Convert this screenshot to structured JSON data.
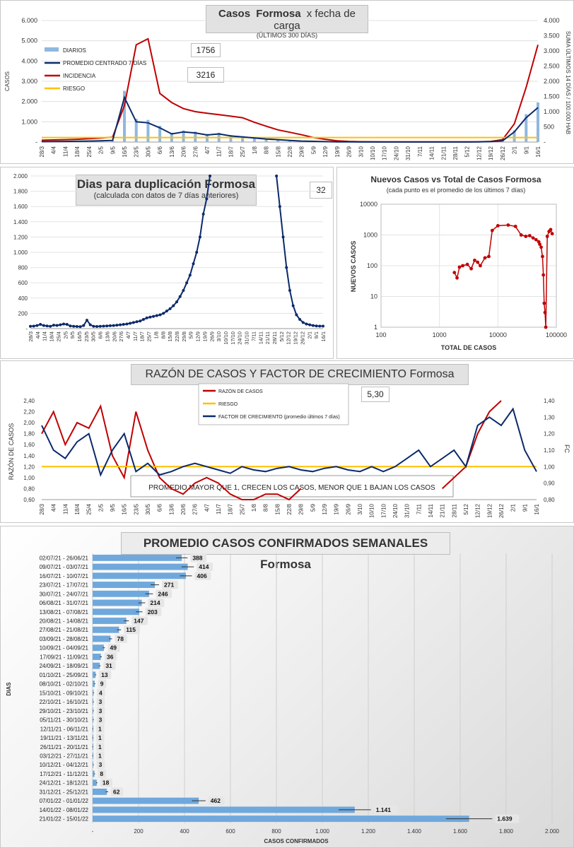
{
  "charts": {
    "cases": {
      "title_a": "Casos",
      "title_b": "Formosa",
      "title_c": "x fecha de carga",
      "subtitle": "(ÚLTIMOS 300 DÍAS)",
      "ylabel_left": "CASOS",
      "ylabel_right": "SUMA ÚLTIMOS 14 DÍAS / 100.000 HAB",
      "box1": "1756",
      "box2": "3216",
      "legend": [
        "DIARIOS",
        "PROMEDIO CENTRADO 7 DÍAS",
        "INCIDENCIA",
        "RIESGO"
      ],
      "y_ticks": [
        "-",
        "1.000",
        "2.000",
        "3.000",
        "4.000",
        "5.000",
        "6.000"
      ],
      "y2_ticks": [
        "-",
        "500",
        "1.000",
        "1.500",
        "2.000",
        "2.500",
        "3.000",
        "3.500",
        "4.000"
      ]
    },
    "dup": {
      "title": "Dias para duplicación Formosa",
      "subtitle": "(calculada con datos de 7 días anteriores)",
      "box": "32",
      "y_ticks": [
        "-",
        "200",
        "400",
        "600",
        "800",
        "1.000",
        "1.200",
        "1.400",
        "1.600",
        "1.800",
        "2.000"
      ],
      "x_ticks": [
        "28/3",
        "4/4",
        "11/4",
        "18/4",
        "25/4",
        "2/5",
        "9/5",
        "16/5",
        "23/5",
        "30/5",
        "6/6",
        "13/6",
        "20/6",
        "27/6",
        "4/7",
        "11/7",
        "18/7",
        "25/7",
        "1/8",
        "8/8",
        "15/8",
        "22/8",
        "29/8",
        "5/9",
        "12/9",
        "19/9",
        "26/9",
        "3/10",
        "10/10",
        "17/10",
        "24/10",
        "31/10",
        "7/11",
        "14/11",
        "21/11",
        "28/11",
        "5/12",
        "12/12",
        "19/12",
        "26/12",
        "2/1",
        "9/1",
        "16/1"
      ]
    },
    "scatter": {
      "title": "Nuevos Casos vs Total de Casos Formosa",
      "subtitle": "(cada punto es el promedio de los últimos 7 días)",
      "xlabel": "TOTAL DE CASOS",
      "ylabel": "NUEVOS CASOS",
      "y_ticks": [
        "1",
        "10",
        "100",
        "1000",
        "10000"
      ],
      "x_ticks": [
        "100",
        "1000",
        "10000",
        "100000"
      ]
    },
    "ratio": {
      "title_a": "RAZÓN DE CASOS Y FACTOR DE CRECIMIENTO",
      "title_b": "Formosa",
      "ylabel_left": "RAZÓN DE CASOS",
      "ylabel_right": "FC",
      "box": "5,30",
      "legend": [
        "RAZÓN DE CASOS",
        "RIESGO",
        "FACTOR DE CRECIMIENTO (promedio últimos 7 días)"
      ],
      "note": "PROMEDIO MAYOR QUE 1, CRECEN LOS CASOS, MENOR QUE 1 BAJAN LOS CASOS",
      "y_ticks": [
        "0,60",
        "0,80",
        "1,00",
        "1,20",
        "1,40",
        "1,60",
        "1,80",
        "2,00",
        "2,20",
        "2,40"
      ],
      "y2_ticks": [
        "0,80",
        "0,90",
        "1,00",
        "1,10",
        "1,20",
        "1,30",
        "1,40"
      ]
    },
    "weekly": {
      "title": "PROMEDIO CASOS CONFIRMADOS SEMANALES Formosa",
      "xlabel": "CASOS CONFIRMADOS",
      "ylabel": "DIAS",
      "x_ticks": [
        "-",
        "200",
        "400",
        "600",
        "800",
        "1.000",
        "1.200",
        "1.400",
        "1.600",
        "1.800",
        "2.000"
      ],
      "value_labels": [
        "388",
        "414",
        "406",
        "271",
        "246",
        "214",
        "203",
        "147",
        "115",
        "78",
        "49",
        "36",
        "31",
        "13",
        "9",
        "4",
        "3",
        "3",
        "3",
        "1",
        "1",
        "1",
        "1",
        "3",
        "8",
        "18",
        "62",
        "462",
        "1.141",
        "1.639"
      ]
    }
  },
  "chart_data": [
    {
      "type": "bar",
      "title": "Casos Formosa x fecha de carga",
      "categories": [
        "28/3",
        "4/4",
        "11/4",
        "18/4",
        "25/4",
        "2/5",
        "9/5",
        "16/5",
        "23/5",
        "30/5",
        "6/6",
        "13/6",
        "20/6",
        "27/6",
        "4/7",
        "11/7",
        "18/7",
        "25/7",
        "1/8",
        "8/8",
        "15/8",
        "22/8",
        "29/8",
        "5/9",
        "12/9",
        "19/9",
        "26/9",
        "3/10",
        "10/10",
        "17/10",
        "24/10",
        "31/10",
        "7/11",
        "14/11",
        "21/11",
        "28/11",
        "5/12",
        "12/12",
        "19/12",
        "26/12",
        "2/1",
        "9/1",
        "16/1"
      ],
      "series": [
        {
          "name": "PROMEDIO CENTRADO 7 DÍAS",
          "values": [
            20,
            25,
            30,
            40,
            50,
            60,
            80,
            2200,
            1000,
            950,
            700,
            400,
            500,
            450,
            350,
            400,
            300,
            250,
            200,
            150,
            120,
            80,
            50,
            35,
            20,
            10,
            8,
            5,
            4,
            3,
            3,
            2,
            2,
            2,
            2,
            3,
            5,
            10,
            20,
            60,
            500,
            1200,
            1700
          ]
        },
        {
          "name": "INCIDENCIA",
          "values": [
            60,
            70,
            80,
            90,
            110,
            130,
            160,
            1200,
            3200,
            3400,
            1600,
            1300,
            1100,
            1000,
            950,
            900,
            850,
            800,
            650,
            520,
            400,
            320,
            240,
            150,
            90,
            40,
            20,
            12,
            10,
            8,
            6,
            5,
            4,
            4,
            4,
            5,
            6,
            10,
            20,
            80,
            600,
            1800,
            3200
          ]
        },
        {
          "name": "RIESGO",
          "values": [
            150,
            150,
            150,
            150,
            150,
            150,
            150,
            150,
            150,
            150,
            150,
            150,
            150,
            150,
            150,
            150,
            150,
            150,
            150,
            150,
            150,
            150,
            150,
            150,
            150,
            150,
            150,
            150,
            150,
            150,
            150,
            150,
            150,
            150,
            150,
            150,
            150,
            150,
            150,
            150,
            150,
            150,
            150
          ]
        }
      ],
      "ylim": [
        0,
        6000
      ],
      "y2lim": [
        0,
        4000
      ]
    },
    {
      "type": "line",
      "title": "Dias para duplicación Formosa",
      "values": [
        30,
        32,
        40,
        55,
        40,
        35,
        30,
        45,
        42,
        50,
        60,
        55,
        35,
        30,
        28,
        25,
        40,
        110,
        50,
        30,
        28,
        30,
        32,
        35,
        38,
        40,
        45,
        50,
        55,
        60,
        70,
        80,
        90,
        100,
        120,
        140,
        150,
        160,
        170,
        180,
        200,
        230,
        260,
        300,
        350,
        420,
        500,
        600,
        700,
        850,
        1000,
        1200,
        1500,
        1700,
        2000,
        null,
        null,
        null,
        null,
        null,
        null,
        null,
        null,
        null,
        null,
        null,
        null,
        null,
        null,
        null,
        null,
        null,
        null,
        null,
        2000,
        1600,
        1200,
        800,
        500,
        300,
        180,
        120,
        80,
        60,
        50,
        40,
        35,
        32,
        32
      ],
      "ylim": [
        0,
        2000
      ]
    },
    {
      "type": "scatter",
      "title": "Nuevos Casos vs Total de Casos Formosa",
      "x": [
        1800,
        2000,
        2200,
        2500,
        3000,
        3500,
        4000,
        4500,
        5000,
        6000,
        7000,
        8000,
        10000,
        15000,
        20000,
        25000,
        30000,
        35000,
        40000,
        45000,
        50000,
        52000,
        55000,
        58000,
        60000,
        62000,
        64000,
        66000,
        70000,
        75000,
        80000,
        85000
      ],
      "y": [
        60,
        40,
        90,
        100,
        110,
        80,
        150,
        130,
        100,
        180,
        200,
        1400,
        2000,
        2100,
        1900,
        1000,
        900,
        950,
        800,
        700,
        600,
        500,
        400,
        200,
        50,
        6,
        3,
        1,
        900,
        1300,
        1500,
        1100
      ],
      "xlim": [
        100,
        100000
      ],
      "ylim": [
        1,
        10000
      ],
      "log_scale": true
    },
    {
      "type": "line",
      "title": "RAZÓN DE CASOS Y FACTOR DE CRECIMIENTO Formosa",
      "categories": [
        "28/3",
        "4/4",
        "11/4",
        "18/4",
        "25/4",
        "2/5",
        "9/5",
        "16/5",
        "23/5",
        "30/5",
        "6/6",
        "13/6",
        "20/6",
        "27/6",
        "4/7",
        "11/7",
        "18/7",
        "25/7",
        "1/8",
        "8/8",
        "15/8",
        "22/8",
        "29/8",
        "5/9",
        "12/9",
        "19/9",
        "26/9",
        "3/10",
        "10/10",
        "17/10",
        "24/10",
        "31/10",
        "7/11",
        "14/11",
        "21/11",
        "28/11",
        "5/12",
        "12/12",
        "19/12",
        "26/12",
        "2/1",
        "9/1",
        "16/1"
      ],
      "series": [
        {
          "name": "RAZÓN DE CASOS",
          "values": [
            1.8,
            2.2,
            1.6,
            2.0,
            1.9,
            2.3,
            1.4,
            1.0,
            2.2,
            1.5,
            1.0,
            0.8,
            0.7,
            0.9,
            1.0,
            0.9,
            0.7,
            0.6,
            0.6,
            0.7,
            0.7,
            0.6,
            0.8,
            null,
            null,
            null,
            null,
            null,
            null,
            null,
            null,
            null,
            null,
            null,
            0.8,
            1.0,
            1.2,
            1.8,
            2.2,
            2.4,
            null,
            null,
            null
          ]
        },
        {
          "name": "RIESGO",
          "values": [
            1.2,
            1.2,
            1.2,
            1.2,
            1.2,
            1.2,
            1.2,
            1.2,
            1.2,
            1.2,
            1.2,
            1.2,
            1.2,
            1.2,
            1.2,
            1.2,
            1.2,
            1.2,
            1.2,
            1.2,
            1.2,
            1.2,
            1.2,
            1.2,
            1.2,
            1.2,
            1.2,
            1.2,
            1.2,
            1.2,
            1.2,
            1.2,
            1.2,
            1.2,
            1.2,
            1.2,
            1.2,
            1.2,
            1.2,
            1.2,
            1.2,
            1.2,
            1.2
          ]
        },
        {
          "name": "FACTOR DE CRECIMIENTO (promedio últimos 7 días)",
          "values": [
            1.25,
            1.1,
            1.05,
            1.15,
            1.2,
            0.95,
            1.1,
            1.2,
            0.97,
            1.02,
            0.95,
            0.97,
            1.0,
            1.02,
            1.0,
            0.98,
            0.96,
            1.0,
            0.98,
            0.97,
            0.99,
            1.0,
            0.98,
            0.97,
            0.99,
            1.0,
            0.98,
            0.97,
            1.0,
            0.97,
            1.0,
            1.05,
            1.1,
            1.0,
            1.05,
            1.1,
            1.0,
            1.25,
            1.3,
            1.25,
            1.35,
            1.1,
            0.97
          ]
        }
      ],
      "ylim": [
        0.6,
        2.4
      ],
      "y2lim": [
        0.8,
        1.4
      ]
    },
    {
      "type": "bar",
      "title": "PROMEDIO CASOS CONFIRMADOS SEMANALES Formosa",
      "categories": [
        "02/07/21 - 26/06/21",
        "09/07/21 - 03/07/21",
        "16/07/21 - 10/07/21",
        "23/07/21 - 17/07/21",
        "30/07/21 - 24/07/21",
        "06/08/21 - 31/07/21",
        "13/08/21 - 07/08/21",
        "20/08/21 - 14/08/21",
        "27/08/21 - 21/08/21",
        "03/09/21 - 28/08/21",
        "10/09/21 - 04/09/21",
        "17/09/21 - 11/09/21",
        "24/09/21 - 18/09/21",
        "01/10/21 - 25/09/21",
        "08/10/21 - 02/10/21",
        "15/10/21 - 09/10/21",
        "22/10/21 - 16/10/21",
        "29/10/21 - 23/10/21",
        "05/11/21 - 30/10/21",
        "12/11/21 - 06/11/21",
        "19/11/21 - 13/11/21",
        "26/11/21 - 20/11/21",
        "03/12/21 - 27/11/21",
        "10/12/21 - 04/12/21",
        "17/12/21 - 11/12/21",
        "24/12/21 - 18/12/21",
        "31/12/21 - 25/12/21",
        "07/01/22 - 01/01/22",
        "14/01/22 - 08/01/22",
        "21/01/22 - 15/01/22"
      ],
      "values": [
        388,
        414,
        406,
        271,
        246,
        214,
        203,
        147,
        115,
        78,
        49,
        36,
        31,
        13,
        9,
        4,
        3,
        3,
        3,
        1,
        1,
        1,
        1,
        3,
        8,
        18,
        62,
        462,
        1141,
        1639
      ],
      "orientation": "horizontal",
      "xlim": [
        0,
        2000
      ]
    }
  ]
}
